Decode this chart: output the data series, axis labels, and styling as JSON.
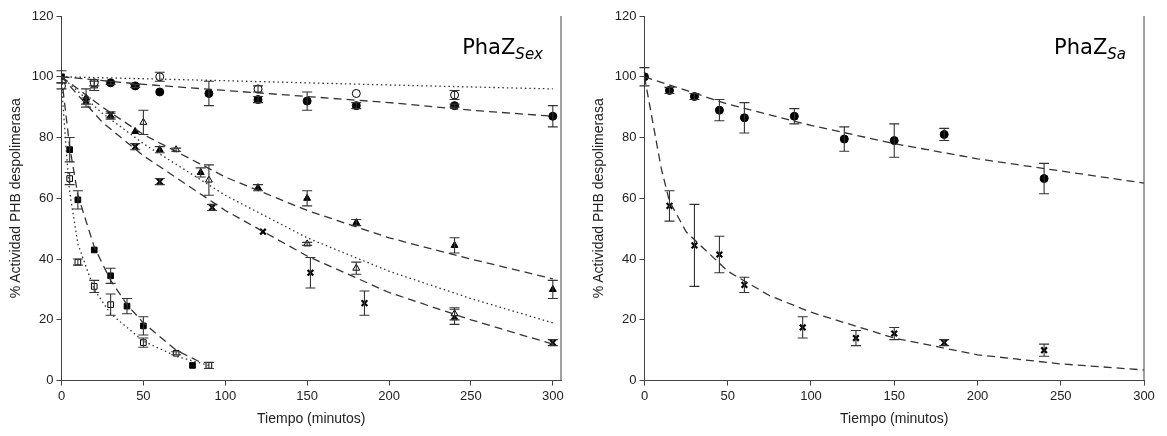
{
  "chart_data": [
    {
      "type": "scatter",
      "title": "PhaZ$_{Sex}$",
      "xlabel": "Tiempo (minutos)",
      "ylabel": "% Actividad PHB despolimerasa",
      "xlim": [
        0,
        305
      ],
      "xticks": [
        0,
        50,
        100,
        150,
        200,
        250,
        300
      ],
      "ylim": [
        0,
        120
      ],
      "yticks": [
        0,
        20,
        40,
        60,
        80,
        100,
        120
      ],
      "grid": false,
      "legend": false,
      "series": [
        {
          "type": "line",
          "line_style": "dashed",
          "color": "#333333",
          "x": [
            0,
            50,
            100,
            150,
            200,
            250,
            300
          ],
          "values": [
            100,
            97.5,
            95.5,
            93.5,
            91.5,
            89,
            87
          ]
        },
        {
          "type": "line",
          "line_style": "dotted",
          "color": "#333333",
          "x": [
            0,
            100,
            200,
            300
          ],
          "values": [
            100,
            98.7,
            97.3,
            96
          ]
        },
        {
          "type": "line",
          "line_style": "dashed",
          "color": "#333333",
          "x": [
            0,
            25,
            50,
            100,
            150,
            200,
            250,
            300
          ],
          "values": [
            100,
            90,
            81,
            67,
            56,
            47,
            40,
            33.5
          ]
        },
        {
          "type": "line",
          "line_style": "dotted",
          "color": "#333333",
          "x": [
            0,
            25,
            50,
            100,
            150,
            200,
            250,
            300
          ],
          "values": [
            100,
            88,
            78,
            61,
            47,
            36,
            27,
            19
          ]
        },
        {
          "type": "line",
          "line_style": "dashed",
          "color": "#333333",
          "x": [
            0,
            25,
            50,
            100,
            150,
            200,
            250,
            300
          ],
          "values": [
            100,
            85,
            74,
            56,
            41,
            29,
            20,
            12
          ]
        },
        {
          "type": "line",
          "line_style": "dashed",
          "color": "#333333",
          "x": [
            0,
            5,
            10,
            20,
            30,
            40,
            50,
            70,
            85
          ],
          "values": [
            100,
            77,
            61,
            44,
            33,
            25,
            19,
            10,
            6
          ]
        },
        {
          "type": "line",
          "line_style": "dotted",
          "color": "#333333",
          "x": [
            0,
            3,
            5,
            10,
            20,
            30,
            50,
            70,
            90
          ],
          "values": [
            98,
            75,
            62,
            45,
            30,
            22,
            13,
            8,
            5
          ]
        },
        {
          "color": "#000000",
          "marker": "circle",
          "x": [
            30,
            45,
            60,
            90,
            120,
            150,
            180,
            240,
            300
          ],
          "values": [
            98,
            97,
            95,
            94.5,
            92.5,
            92,
            90.5,
            90.5,
            87
          ],
          "errors": [
            0.5,
            0.5,
            null,
            4,
            1,
            3,
            1,
            0.5,
            3.5
          ]
        },
        {
          "color": "#ffffff",
          "marker": "circle",
          "x": [
            0,
            20,
            60,
            120,
            180,
            240
          ],
          "values": [
            97,
            98,
            100,
            96,
            94.5,
            94
          ],
          "errors": [
            1,
            1,
            1.5,
            1,
            null,
            1.5
          ]
        },
        {
          "color": "#000000",
          "marker": "triangle",
          "x": [
            15,
            30,
            45,
            60,
            85,
            120,
            150,
            180,
            240,
            300
          ],
          "values": [
            93,
            87,
            82,
            76,
            68.5,
            63.5,
            60,
            52,
            44.5,
            30
          ],
          "errors": [
            3,
            1,
            null,
            1,
            1.5,
            1,
            2.5,
            1,
            2.5,
            3
          ]
        },
        {
          "color": "#ffffff",
          "marker": "triangle",
          "x": [
            20,
            50,
            70,
            90,
            150,
            180,
            240
          ],
          "values": [
            97,
            85,
            76,
            66,
            45,
            37,
            22
          ],
          "errors": [
            1.5,
            4,
            0.5,
            5,
            0.5,
            2,
            2
          ]
        },
        {
          "color": "#000000",
          "marker": "cross",
          "x": [
            15,
            30,
            45,
            60,
            92,
            123,
            152,
            185,
            240,
            300
          ],
          "values": [
            92,
            87.5,
            77,
            65.5,
            57,
            49,
            35.5,
            25.5,
            21,
            12.5
          ],
          "errors": [
            1,
            1,
            1,
            1,
            1,
            null,
            5,
            4,
            2.5,
            1
          ]
        },
        {
          "color": "#000000",
          "marker": "square",
          "x": [
            0,
            5,
            10,
            20,
            30,
            40,
            50,
            80
          ],
          "values": [
            100,
            76,
            59.5,
            43,
            34.5,
            24.5,
            18,
            5
          ],
          "errors": [
            2,
            4,
            3,
            null,
            2.5,
            2.5,
            3,
            null
          ]
        },
        {
          "color": "#ffffff",
          "marker": "square",
          "x": [
            5,
            10,
            20,
            30,
            50,
            70,
            90
          ],
          "values": [
            66.5,
            39,
            31,
            25,
            12.5,
            9,
            5
          ],
          "errors": [
            2,
            1,
            2,
            3.5,
            1.5,
            0.5,
            1
          ]
        }
      ]
    },
    {
      "type": "scatter",
      "title": "PhaZ$_{Sa}$",
      "xlabel": "Tiempo (minutos)",
      "ylabel": "% Actividad PHB despolimerasa",
      "xlim": [
        0,
        300
      ],
      "xticks": [
        0,
        50,
        100,
        150,
        200,
        250,
        300
      ],
      "ylim": [
        0,
        120
      ],
      "yticks": [
        0,
        20,
        40,
        60,
        80,
        100,
        120
      ],
      "grid": false,
      "legend": false,
      "series": [
        {
          "type": "line",
          "line_style": "dashed",
          "color": "#333333",
          "x": [
            0,
            50,
            100,
            150,
            200,
            250,
            300
          ],
          "values": [
            100,
            91,
            84,
            78,
            73,
            69,
            65
          ]
        },
        {
          "type": "line",
          "line_style": "dashed",
          "color": "#333333",
          "x": [
            0,
            5,
            10,
            15,
            25,
            50,
            75,
            100,
            150,
            200,
            250,
            300
          ],
          "values": [
            100,
            85,
            70,
            59,
            49,
            36,
            28,
            22.5,
            14,
            8.5,
            5.5,
            3.5
          ]
        },
        {
          "color": "#000000",
          "marker": "circle",
          "x": [
            0,
            15,
            30,
            45,
            60,
            90,
            120,
            150,
            180,
            240
          ],
          "values": [
            100,
            95.5,
            93.5,
            89,
            86.5,
            87,
            79.5,
            79,
            81,
            66.5
          ],
          "errors": [
            3,
            1,
            1,
            3.5,
            5,
            2.5,
            4,
            5.5,
            2,
            5
          ]
        },
        {
          "color": "#000000",
          "marker": "cross",
          "x": [
            15,
            30,
            45,
            60,
            95,
            127,
            150,
            180,
            240
          ],
          "values": [
            57.5,
            44.5,
            41.5,
            31.5,
            17.5,
            14,
            15.5,
            12.5,
            10
          ],
          "errors": [
            5,
            13.5,
            6,
            2.5,
            3.5,
            2.5,
            2,
            1,
            2
          ]
        }
      ]
    }
  ]
}
